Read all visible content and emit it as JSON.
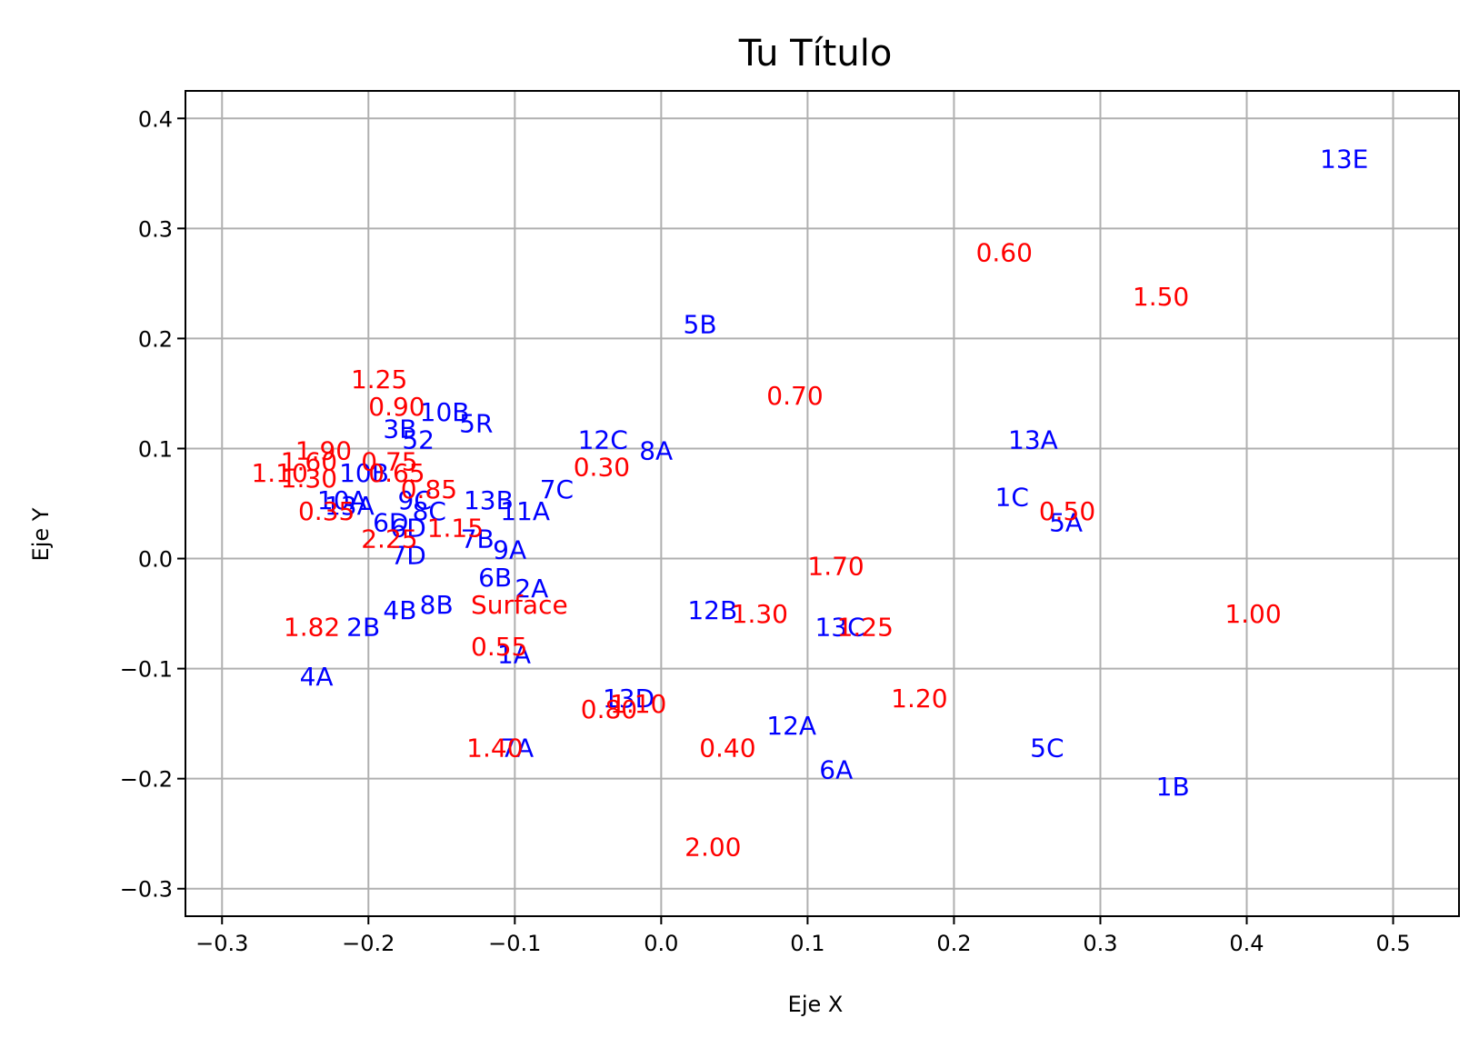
{
  "chart_data": {
    "type": "scatter",
    "title": "Tu Título",
    "xlabel": "Eje X",
    "ylabel": "Eje Y",
    "xlim": [
      -0.325,
      0.545
    ],
    "ylim": [
      -0.325,
      0.425
    ],
    "xticks": [
      "−0.3",
      "−0.2",
      "−0.1",
      "0.0",
      "0.1",
      "0.2",
      "0.3",
      "0.4",
      "0.5"
    ],
    "xtick_values": [
      -0.3,
      -0.2,
      -0.1,
      0.0,
      0.1,
      0.2,
      0.3,
      0.4,
      0.5
    ],
    "yticks": [
      "−0.3",
      "−0.2",
      "−0.1",
      "0.0",
      "0.1",
      "0.2",
      "0.3",
      "0.4"
    ],
    "ytick_values": [
      -0.3,
      -0.2,
      -0.1,
      0.0,
      0.1,
      0.2,
      0.3,
      0.4
    ],
    "grid": true,
    "colors": {
      "blue": "#0000ff",
      "red": "#ff0000",
      "grid": "#b0b0b0"
    },
    "series": [
      {
        "color": "#0000ff",
        "points": [
          {
            "label": "13E",
            "x": 0.45,
            "y": 0.355
          },
          {
            "label": "5B",
            "x": 0.015,
            "y": 0.205
          },
          {
            "label": "10B",
            "x": -0.165,
            "y": 0.125
          },
          {
            "label": "5R",
            "x": -0.138,
            "y": 0.115
          },
          {
            "label": "3B",
            "x": -0.19,
            "y": 0.11
          },
          {
            "label": "52",
            "x": -0.177,
            "y": 0.1
          },
          {
            "label": "12C",
            "x": -0.057,
            "y": 0.1
          },
          {
            "label": "8A",
            "x": -0.015,
            "y": 0.09
          },
          {
            "label": "13A",
            "x": 0.237,
            "y": 0.1
          },
          {
            "label": "7C",
            "x": -0.083,
            "y": 0.055
          },
          {
            "label": "13B",
            "x": -0.135,
            "y": 0.045
          },
          {
            "label": "11A",
            "x": -0.11,
            "y": 0.035
          },
          {
            "label": "1C",
            "x": 0.228,
            "y": 0.048
          },
          {
            "label": "5A",
            "x": 0.265,
            "y": 0.025
          },
          {
            "label": "10B",
            "x": -0.22,
            "y": 0.07
          },
          {
            "label": "9C",
            "x": -0.18,
            "y": 0.045
          },
          {
            "label": "8C",
            "x": -0.17,
            "y": 0.035
          },
          {
            "label": "10A",
            "x": -0.235,
            "y": 0.045
          },
          {
            "label": "13A",
            "x": -0.23,
            "y": 0.04
          },
          {
            "label": "6D",
            "x": -0.197,
            "y": 0.025
          },
          {
            "label": "6D",
            "x": -0.185,
            "y": 0.02
          },
          {
            "label": "7B",
            "x": -0.137,
            "y": 0.01
          },
          {
            "label": "9A",
            "x": -0.115,
            "y": 0.0
          },
          {
            "label": "7D",
            "x": -0.185,
            "y": -0.005
          },
          {
            "label": "6B",
            "x": -0.125,
            "y": -0.025
          },
          {
            "label": "2A",
            "x": -0.1,
            "y": -0.035
          },
          {
            "label": "4B",
            "x": -0.19,
            "y": -0.055
          },
          {
            "label": "8B",
            "x": -0.165,
            "y": -0.05
          },
          {
            "label": "12B",
            "x": 0.018,
            "y": -0.055
          },
          {
            "label": "13C",
            "x": 0.105,
            "y": -0.07
          },
          {
            "label": "2B",
            "x": -0.215,
            "y": -0.07
          },
          {
            "label": "1A",
            "x": -0.112,
            "y": -0.095
          },
          {
            "label": "4A",
            "x": -0.247,
            "y": -0.115
          },
          {
            "label": "13D",
            "x": -0.04,
            "y": -0.135
          },
          {
            "label": "12A",
            "x": 0.072,
            "y": -0.16
          },
          {
            "label": "7A",
            "x": -0.11,
            "y": -0.18
          },
          {
            "label": "5C",
            "x": 0.252,
            "y": -0.18
          },
          {
            "label": "6A",
            "x": 0.108,
            "y": -0.2
          },
          {
            "label": "1B",
            "x": 0.338,
            "y": -0.215
          }
        ]
      },
      {
        "color": "#ff0000",
        "points": [
          {
            "label": "0.60",
            "x": 0.215,
            "y": 0.27
          },
          {
            "label": "1.50",
            "x": 0.322,
            "y": 0.23
          },
          {
            "label": "1.25",
            "x": -0.212,
            "y": 0.155
          },
          {
            "label": "0.70",
            "x": 0.072,
            "y": 0.14
          },
          {
            "label": "0.90",
            "x": -0.2,
            "y": 0.13
          },
          {
            "label": "1.90",
            "x": -0.25,
            "y": 0.09
          },
          {
            "label": "1.60",
            "x": -0.26,
            "y": 0.08
          },
          {
            "label": "1.10",
            "x": -0.28,
            "y": 0.07
          },
          {
            "label": "1.30",
            "x": -0.26,
            "y": 0.065
          },
          {
            "label": "0.75",
            "x": -0.205,
            "y": 0.08
          },
          {
            "label": "0.65",
            "x": -0.2,
            "y": 0.07
          },
          {
            "label": "0.85",
            "x": -0.178,
            "y": 0.055
          },
          {
            "label": "0.30",
            "x": -0.06,
            "y": 0.075
          },
          {
            "label": "0.35",
            "x": -0.248,
            "y": 0.035
          },
          {
            "label": "2.25",
            "x": -0.205,
            "y": 0.01
          },
          {
            "label": "1.15",
            "x": -0.16,
            "y": 0.02
          },
          {
            "label": "0.50",
            "x": 0.258,
            "y": 0.035
          },
          {
            "label": "1.70",
            "x": 0.1,
            "y": -0.015
          },
          {
            "label": "Surface",
            "x": -0.13,
            "y": -0.05
          },
          {
            "label": "1.30",
            "x": 0.048,
            "y": -0.058
          },
          {
            "label": "1.25",
            "x": 0.12,
            "y": -0.07
          },
          {
            "label": "1.00",
            "x": 0.385,
            "y": -0.058
          },
          {
            "label": "1.82",
            "x": -0.258,
            "y": -0.07
          },
          {
            "label": "0.55",
            "x": -0.13,
            "y": -0.088
          },
          {
            "label": "1.20",
            "x": 0.157,
            "y": -0.135
          },
          {
            "label": "0.80",
            "x": -0.055,
            "y": -0.145
          },
          {
            "label": "1.10",
            "x": -0.035,
            "y": -0.14
          },
          {
            "label": "1.40",
            "x": -0.133,
            "y": -0.18
          },
          {
            "label": "0.40",
            "x": 0.026,
            "y": -0.18
          },
          {
            "label": "2.00",
            "x": 0.016,
            "y": -0.27
          }
        ]
      }
    ]
  }
}
